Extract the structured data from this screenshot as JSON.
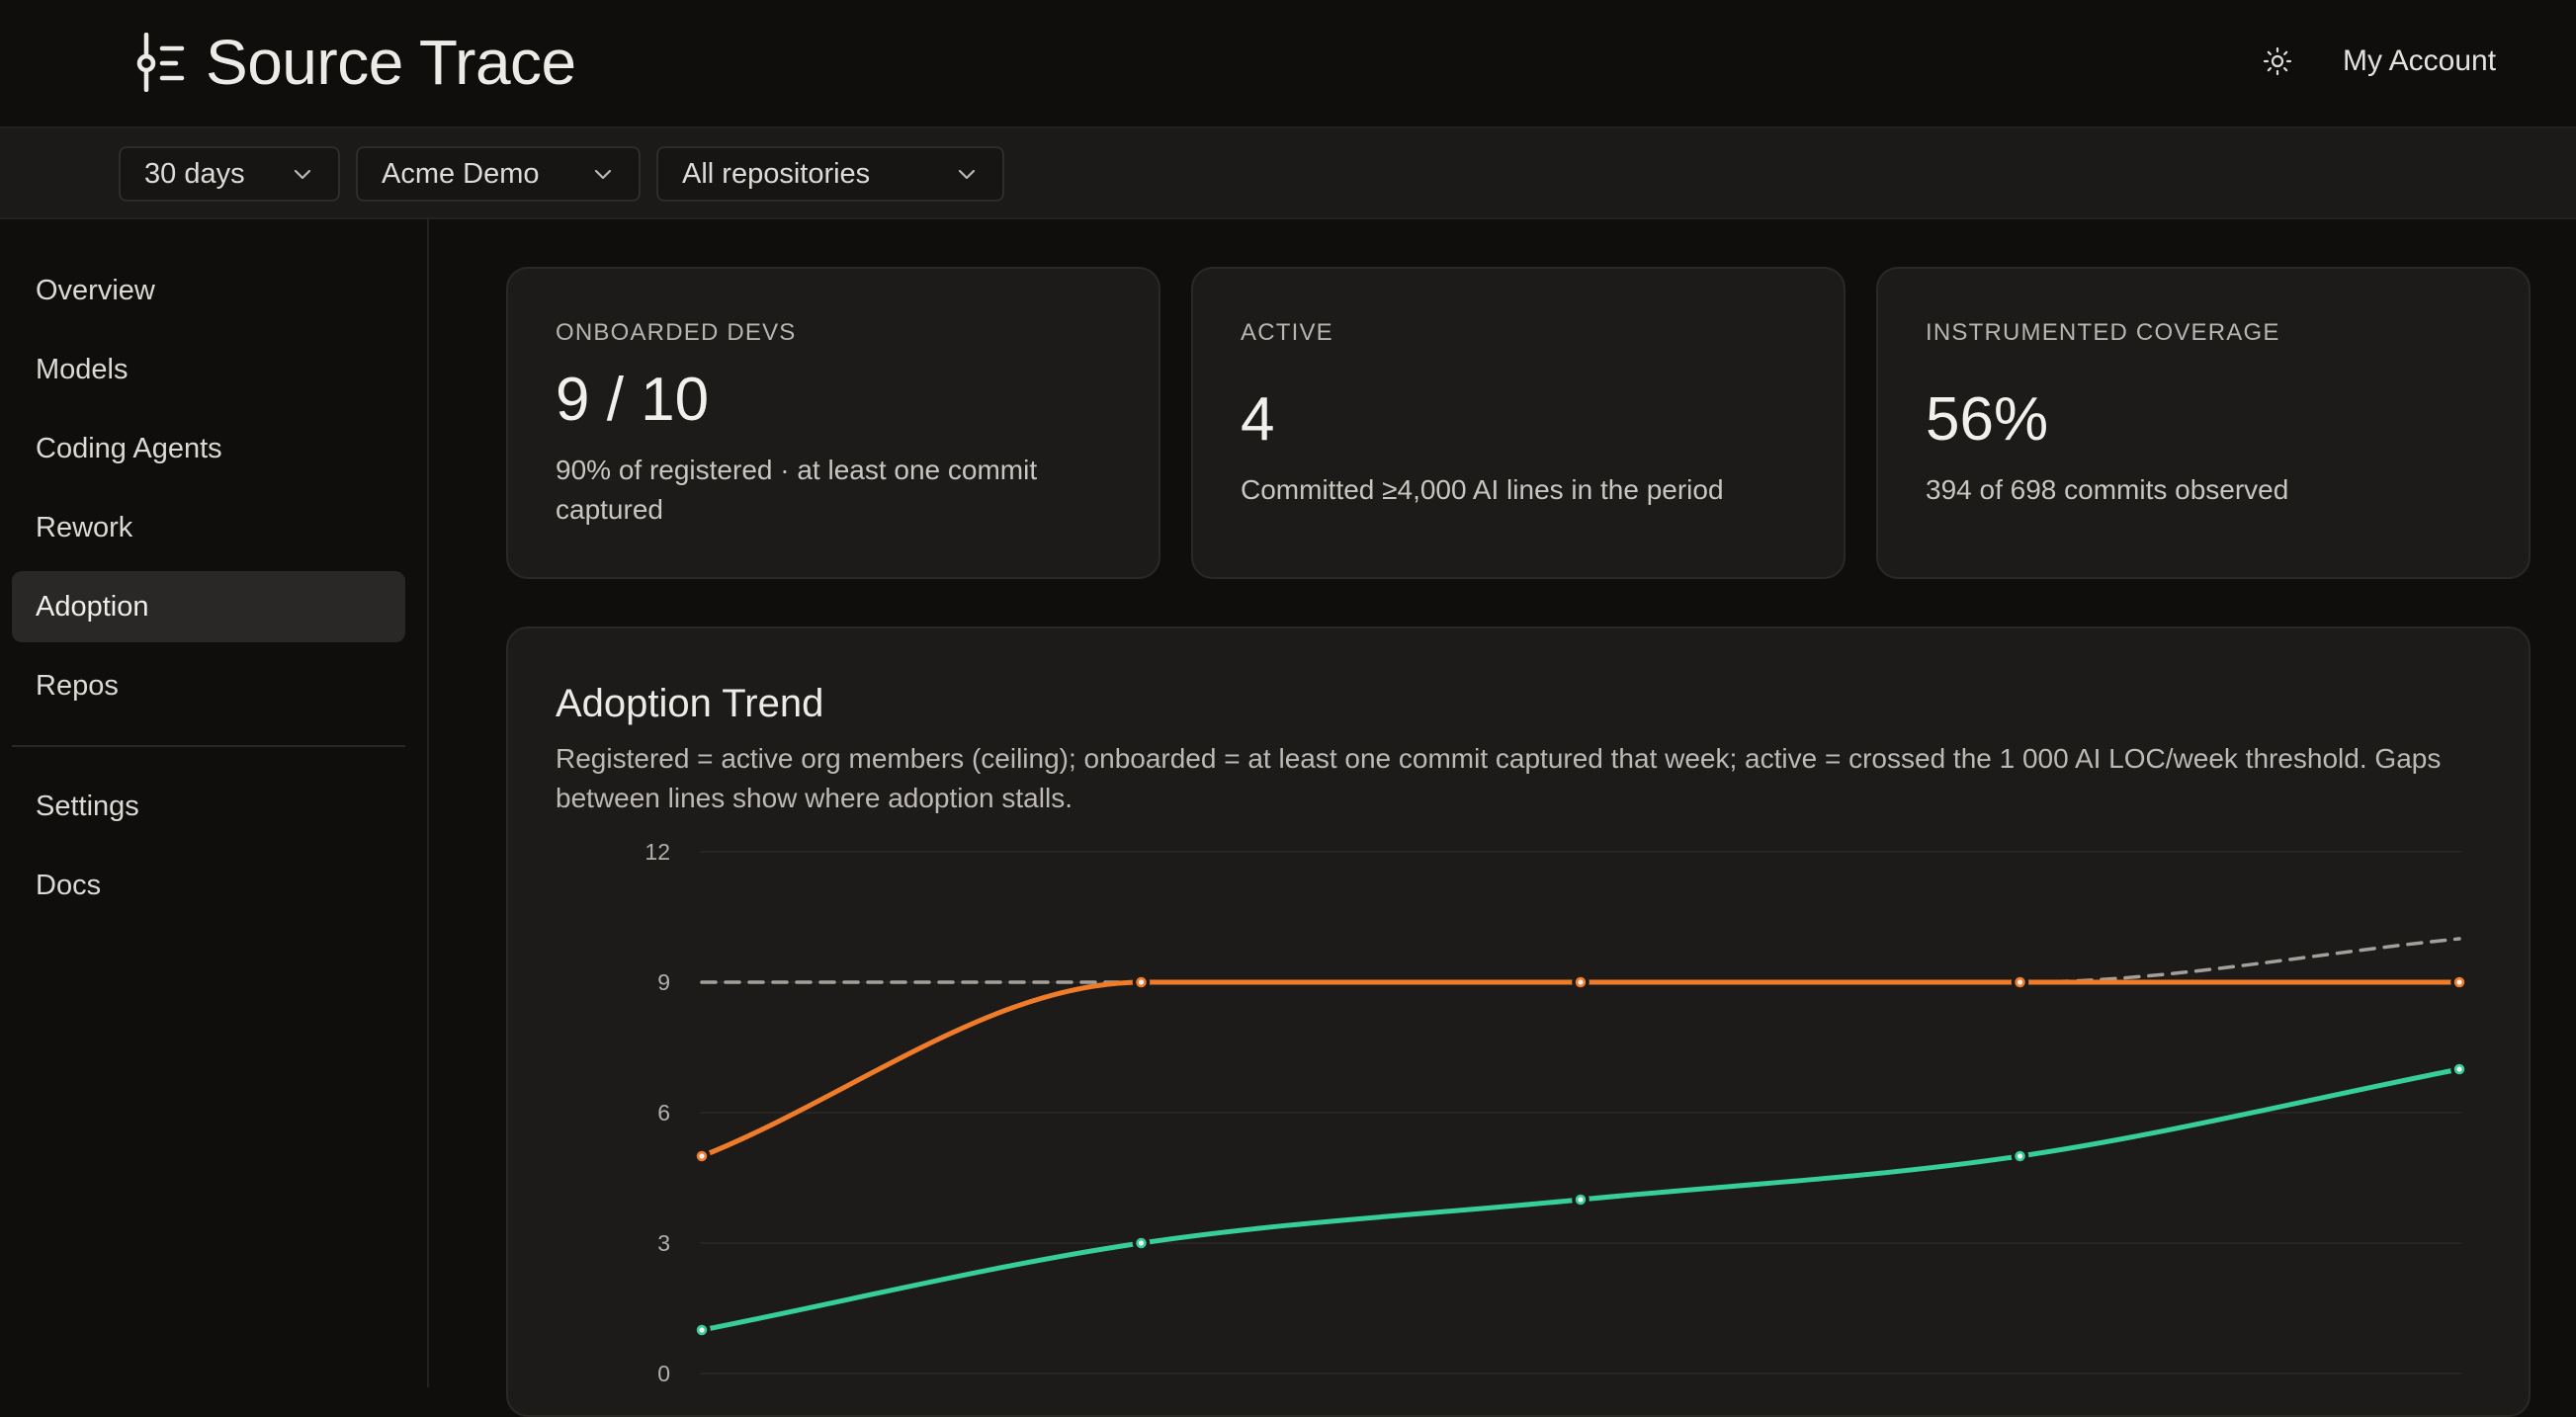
{
  "app": {
    "title": "Source Trace"
  },
  "header": {
    "account_label": "My Account",
    "theme_icon": "sun-icon"
  },
  "filters": {
    "period": "30 days",
    "organization": "Acme Demo",
    "repository": "All repositories"
  },
  "sidebar": {
    "items": [
      {
        "label": "Overview"
      },
      {
        "label": "Models"
      },
      {
        "label": "Coding Agents"
      },
      {
        "label": "Rework"
      },
      {
        "label": "Adoption",
        "active": true
      },
      {
        "label": "Repos"
      }
    ],
    "secondary": [
      {
        "label": "Settings"
      },
      {
        "label": "Docs"
      }
    ]
  },
  "cards": [
    {
      "label": "ONBOARDED DEVS",
      "value": "9 / 10",
      "sub": "90% of registered · at least one commit captured"
    },
    {
      "label": "ACTIVE",
      "value": "4",
      "sub": "Committed ≥4,000 AI lines in the period"
    },
    {
      "label": "INSTRUMENTED COVERAGE",
      "value": "56%",
      "sub": "394 of 698 commits observed"
    }
  ],
  "trend": {
    "title": "Adoption Trend",
    "description": "Registered = active org members (ceiling); onboarded = at least one commit captured that week; active = crossed the 1 000 AI LOC/week threshold. Gaps between lines show where adoption stalls."
  },
  "colors": {
    "registered": "#a3a09b",
    "onboarded": "#f07c2a",
    "active": "#36cf9a",
    "grid": "#2a2926",
    "tick": "#b3b0ab"
  },
  "chart_data": {
    "type": "line",
    "x": [
      1,
      2,
      3,
      4,
      5
    ],
    "ylim": [
      0,
      12
    ],
    "yticks": [
      "0",
      "3",
      "6",
      "9",
      "12"
    ],
    "series": [
      {
        "values": [
          9,
          9,
          9,
          9,
          10
        ],
        "style": "dashed"
      },
      {
        "values": [
          5,
          9,
          9,
          9,
          9
        ]
      },
      {
        "values": [
          1,
          3,
          4,
          5,
          7
        ]
      }
    ]
  }
}
